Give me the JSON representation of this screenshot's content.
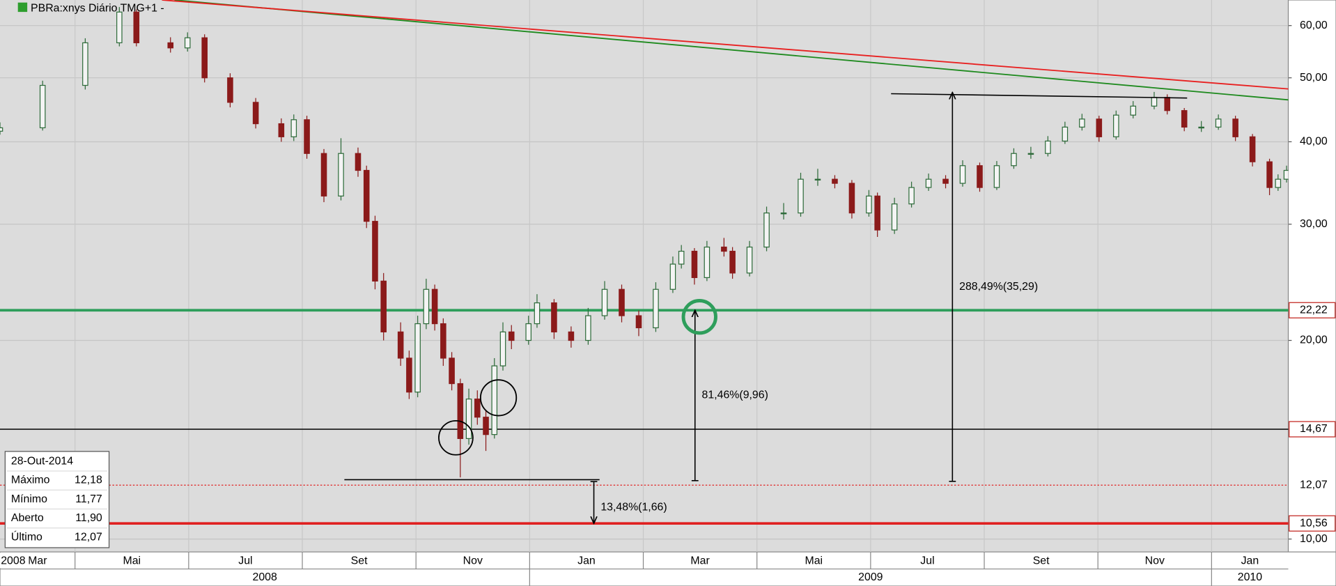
{
  "chart_data": {
    "type": "candlestick",
    "title": "PBRa:xnys Diário TMG+1 -",
    "log_scale": true,
    "grid": true,
    "xlim": [
      2.68,
      25.35
    ],
    "ylim": [
      9.56,
      65.6
    ],
    "yticks": [
      {
        "value": 10,
        "label": "10,00"
      },
      {
        "value": 20,
        "label": "20,00"
      },
      {
        "value": 30,
        "label": "30,00"
      },
      {
        "value": 40,
        "label": "40,00"
      },
      {
        "value": 50,
        "label": "50,00"
      },
      {
        "value": 60,
        "label": "60,00"
      }
    ],
    "xticks": [
      {
        "value": 2,
        "label": "Mar"
      },
      {
        "value": 4,
        "label": "Mai"
      },
      {
        "value": 6,
        "label": "Jul"
      },
      {
        "value": 8,
        "label": "Set"
      },
      {
        "value": 10,
        "label": "Nov"
      },
      {
        "value": 12,
        "label": "Jan"
      },
      {
        "value": 14,
        "label": "Mar"
      },
      {
        "value": 16,
        "label": "Mai"
      },
      {
        "value": 18,
        "label": "Jul"
      },
      {
        "value": 20,
        "label": "Set"
      },
      {
        "value": 22,
        "label": "Nov"
      },
      {
        "value": 24,
        "label": "Jan"
      }
    ],
    "year_ticks": [
      {
        "value": 0,
        "label": "2008"
      },
      {
        "value": 12,
        "label": "2009"
      },
      {
        "value": 24,
        "label": "2010"
      }
    ],
    "corner_label": "2008",
    "series": [
      {
        "up_color": "#2e6b3a",
        "down_color": "#8b1a1a",
        "x": [
          2.68,
          3.43,
          4.18,
          4.78,
          5.08,
          5.68,
          5.98,
          6.28,
          6.73,
          7.18,
          7.63,
          7.85,
          8.08,
          8.38,
          8.68,
          8.98,
          9.13,
          9.28,
          9.43,
          9.73,
          9.88,
          10.03,
          10.18,
          10.33,
          10.48,
          10.63,
          10.78,
          10.93,
          11.08,
          11.23,
          11.38,
          11.53,
          11.68,
          11.98,
          12.13,
          12.43,
          12.73,
          13.03,
          13.32,
          13.62,
          13.92,
          14.22,
          14.52,
          14.67,
          14.9,
          15.12,
          15.42,
          15.57,
          15.87,
          16.17,
          16.47,
          16.77,
          17.07,
          17.37,
          17.67,
          17.97,
          18.12,
          18.42,
          18.72,
          19.02,
          19.32,
          19.62,
          19.92,
          20.22,
          20.52,
          20.82,
          21.12,
          21.42,
          21.72,
          22.02,
          22.32,
          22.62,
          22.99,
          23.22,
          23.52,
          23.82,
          24.12,
          24.42,
          24.72,
          25.02,
          25.17,
          25.32
        ],
        "open": [
          41.5,
          42.0,
          48.7,
          56.5,
          62.9,
          56.5,
          55.5,
          57.5,
          50.0,
          45.9,
          42.6,
          40.7,
          43.2,
          38.4,
          33.1,
          38.4,
          36.2,
          30.3,
          24.6,
          20.6,
          18.8,
          16.7,
          21.2,
          23.9,
          21.2,
          18.8,
          17.2,
          14.2,
          16.3,
          15.3,
          14.4,
          18.3,
          20.6,
          20.0,
          21.2,
          22.8,
          20.6,
          20.0,
          21.8,
          23.9,
          21.8,
          20.9,
          23.9,
          26.1,
          27.3,
          24.9,
          27.7,
          27.3,
          25.3,
          27.7,
          31.2,
          31.2,
          35.1,
          35.1,
          34.6,
          31.2,
          33.1,
          29.4,
          32.2,
          34.1,
          35.1,
          34.6,
          36.8,
          34.1,
          36.8,
          38.4,
          38.4,
          40.1,
          42.1,
          43.3,
          40.7,
          43.9,
          45.3,
          46.7,
          44.6,
          42.1,
          42.1,
          43.3,
          40.7,
          37.3,
          34.1,
          35.1
        ],
        "high": [
          42.8,
          49.5,
          57.4,
          64.0,
          63.5,
          57.6,
          58.6,
          58.2,
          50.8,
          46.6,
          43.4,
          44.0,
          43.8,
          39.0,
          40.5,
          39.2,
          36.8,
          30.9,
          25.3,
          21.3,
          19.3,
          21.8,
          24.8,
          24.3,
          21.6,
          19.2,
          17.5,
          16.9,
          16.8,
          15.7,
          18.8,
          21.3,
          21.1,
          21.8,
          23.5,
          23.1,
          21.0,
          22.4,
          24.6,
          24.3,
          22.2,
          24.5,
          26.8,
          27.9,
          27.6,
          28.3,
          28.6,
          27.7,
          28.3,
          31.9,
          32.3,
          35.9,
          36.4,
          35.6,
          35.0,
          33.8,
          33.5,
          32.9,
          34.8,
          35.8,
          35.6,
          37.5,
          37.2,
          37.4,
          39.1,
          39.3,
          40.8,
          42.9,
          44.1,
          43.8,
          44.6,
          46.1,
          47.6,
          47.2,
          45.0,
          43.0,
          44.0,
          43.8,
          41.1,
          37.7,
          35.7,
          36.8
        ],
        "low": [
          41.0,
          41.6,
          48.0,
          55.8,
          55.8,
          54.6,
          54.8,
          49.2,
          45.1,
          41.9,
          40.0,
          40.1,
          37.7,
          32.4,
          32.6,
          35.4,
          29.6,
          23.9,
          20.0,
          18.3,
          16.3,
          16.4,
          20.8,
          20.7,
          18.3,
          16.8,
          12.4,
          13.9,
          14.9,
          13.6,
          14.2,
          18.0,
          19.4,
          19.7,
          20.9,
          20.1,
          19.5,
          19.7,
          21.5,
          21.3,
          20.3,
          20.6,
          23.6,
          25.7,
          24.3,
          24.6,
          26.8,
          24.8,
          25.0,
          27.3,
          30.5,
          30.8,
          34.3,
          34.0,
          30.6,
          30.8,
          28.7,
          29.0,
          31.8,
          33.7,
          34.0,
          34.2,
          33.6,
          33.8,
          36.4,
          37.7,
          38.0,
          39.7,
          41.6,
          40.0,
          40.3,
          43.4,
          44.8,
          44.0,
          41.5,
          41.4,
          41.7,
          40.1,
          36.7,
          33.2,
          33.7,
          34.7
        ],
        "close": [
          42.0,
          48.7,
          56.5,
          62.9,
          56.5,
          55.5,
          57.5,
          50.0,
          45.9,
          42.6,
          40.7,
          43.2,
          38.4,
          33.1,
          38.4,
          36.2,
          30.3,
          24.6,
          20.6,
          18.8,
          16.7,
          21.2,
          23.9,
          21.2,
          18.8,
          17.2,
          14.2,
          16.3,
          15.3,
          14.4,
          18.3,
          20.6,
          20.0,
          21.2,
          22.8,
          20.6,
          20.0,
          21.8,
          23.9,
          21.8,
          20.9,
          23.9,
          26.1,
          27.3,
          24.9,
          27.7,
          27.3,
          25.3,
          27.7,
          31.2,
          31.2,
          35.1,
          35.1,
          34.6,
          31.2,
          33.1,
          29.4,
          32.2,
          34.1,
          35.1,
          34.6,
          36.8,
          34.1,
          36.8,
          38.4,
          38.4,
          40.1,
          42.1,
          43.3,
          40.7,
          43.9,
          45.3,
          46.7,
          44.6,
          42.1,
          42.1,
          43.3,
          40.7,
          37.3,
          34.1,
          35.1,
          36.2
        ]
      }
    ],
    "hlines": [
      {
        "value": 22.22,
        "label": "22,22",
        "color": "#2e9e5b",
        "label_color": "#c0201a",
        "width": 3,
        "style": "solid"
      },
      {
        "value": 14.67,
        "label": "14,67",
        "color": "#000000",
        "label_color": "#c0201a",
        "width": 1.2,
        "style": "solid"
      },
      {
        "value": 12.07,
        "label": "12,07",
        "color": "#e02020",
        "label_color": "#000000",
        "width": 1,
        "style": "dotted"
      },
      {
        "value": 10.56,
        "label": "10,56",
        "color": "#e02020",
        "label_color": "#c0201a",
        "width": 3,
        "style": "solid"
      }
    ],
    "trend_lines": [
      {
        "x": [
          5.75,
          25.35
        ],
        "y": [
          65.6,
          46.3
        ],
        "color": "#1e8a1e"
      },
      {
        "x": [
          5.53,
          25.35
        ],
        "y": [
          65.6,
          48.1
        ],
        "color": "#e82020"
      }
    ],
    "segments": [
      {
        "x": [
          8.74,
          13.23
        ],
        "y": [
          12.3,
          12.3
        ]
      },
      {
        "x": [
          18.36,
          23.57
        ],
        "y": [
          47.3,
          46.6
        ]
      }
    ],
    "measurements": [
      {
        "label": "13,48%(1,66)",
        "x": 13.13,
        "from": 12.22,
        "to": 10.56
      },
      {
        "label": "81,46%(9,96)",
        "x": 14.91,
        "from": 12.26,
        "to": 22.22
      },
      {
        "label": "288,49%(35,29)",
        "x": 19.44,
        "from": 12.23,
        "to": 47.52
      }
    ],
    "info": {
      "date": "28-Out-2014",
      "rows": [
        [
          "Máximo",
          "12,18"
        ],
        [
          "Mínimo",
          "11,77"
        ],
        [
          "Aberto",
          "11,90"
        ],
        [
          "Último",
          "12,07"
        ]
      ]
    }
  }
}
